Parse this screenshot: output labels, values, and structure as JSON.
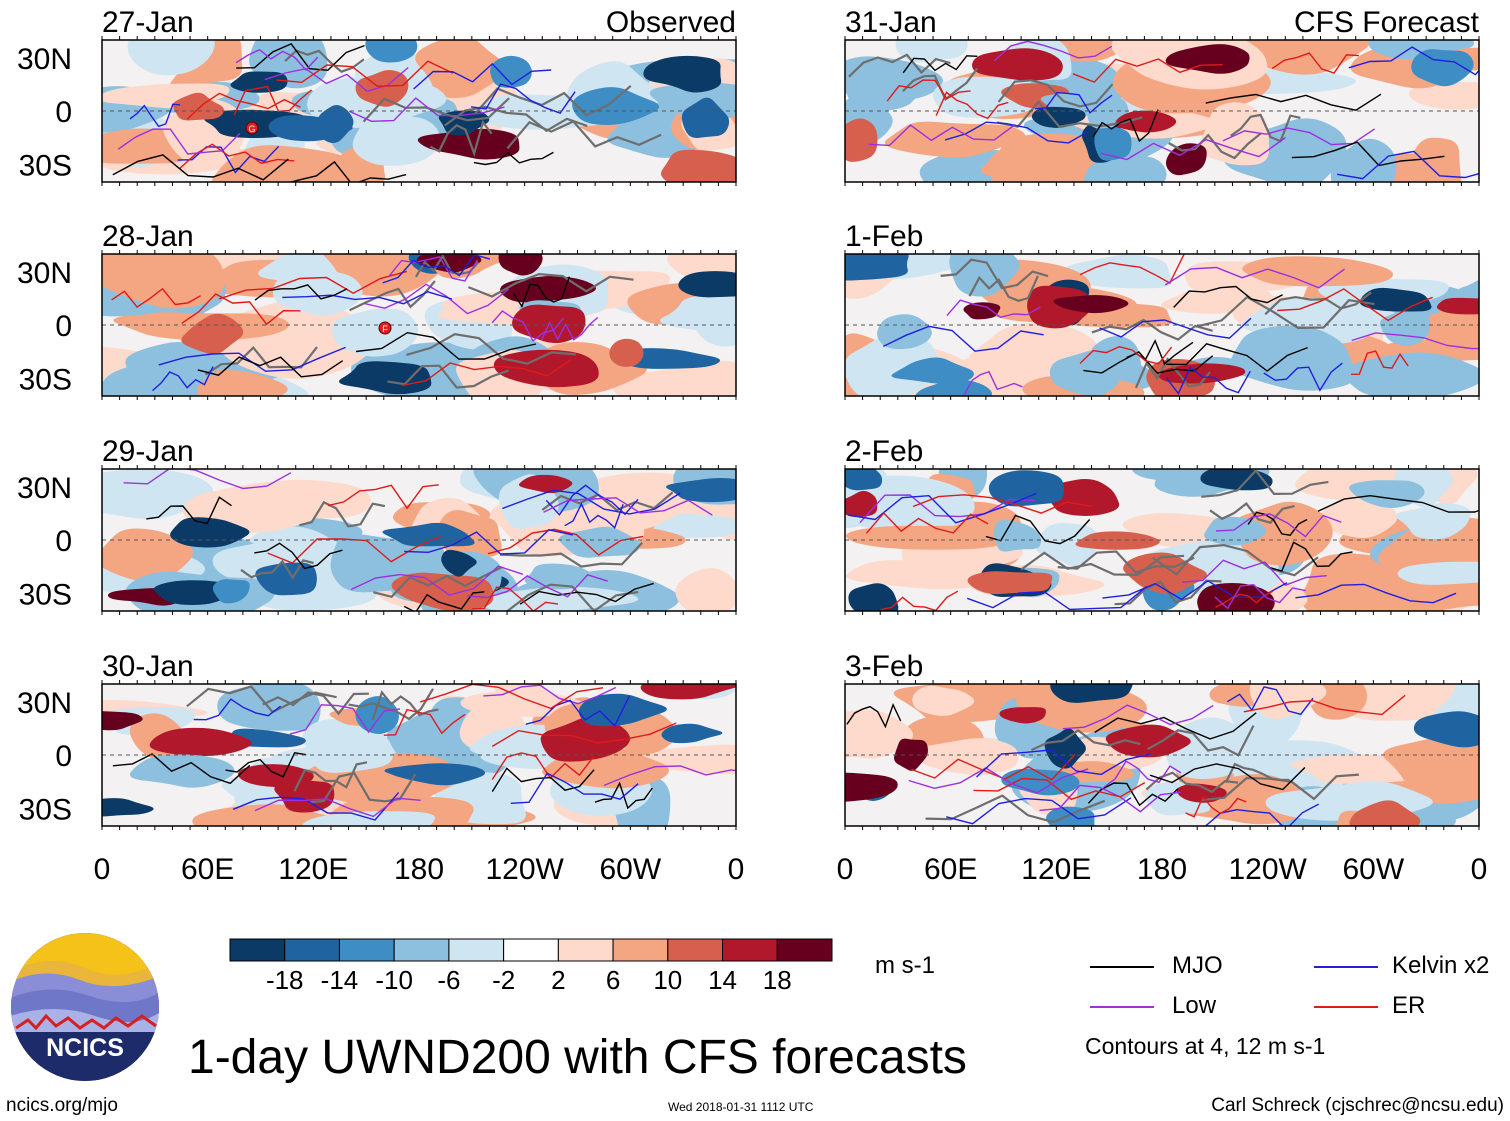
{
  "title": "1-day UWND200 with CFS forecasts",
  "website": "ncics.org/mjo",
  "timestamp": "Wed 2018-01-31 1112 UTC",
  "author": "Carl Schreck (cjschrec@ncsu.edu)",
  "logo_text": "NCICS",
  "columns": {
    "left_label": "Observed",
    "right_label": "CFS Forecast"
  },
  "colorbar": {
    "unit": "m s-1",
    "ticks": [
      "-18",
      "-14",
      "-10",
      "-6",
      "-2",
      "2",
      "6",
      "10",
      "14",
      "18"
    ],
    "colors": [
      "#0b3a66",
      "#1f63a1",
      "#3e8dc4",
      "#8dc0de",
      "#cfe5f1",
      "#ffffff",
      "#fddacb",
      "#f4a582",
      "#d6604d",
      "#b2182b",
      "#67001f"
    ]
  },
  "legend": {
    "items": [
      {
        "label": "MJO",
        "color": "#000000"
      },
      {
        "label": "Kelvin x2",
        "color": "#1f1fe0"
      },
      {
        "label": "Low",
        "color": "#9b30e0"
      },
      {
        "label": "ER",
        "color": "#e01a1a"
      }
    ],
    "contour_note": "Contours at 4, 12 m s-1"
  },
  "chart_data": {
    "type": "heatmap",
    "variable": "200-hPa zonal wind anomaly",
    "x_ticks": [
      "0",
      "60E",
      "120E",
      "180",
      "120W",
      "60W",
      "0"
    ],
    "y_ticks": [
      "30N",
      "0",
      "30S"
    ],
    "xlim": [
      0,
      360
    ],
    "ylim": [
      -40,
      40
    ],
    "panels": [
      {
        "date": "27-Jan",
        "source": "Observed",
        "storms": [
          "G"
        ]
      },
      {
        "date": "28-Jan",
        "source": "Observed",
        "storms": [
          "F"
        ]
      },
      {
        "date": "29-Jan",
        "source": "Observed",
        "storms": []
      },
      {
        "date": "30-Jan",
        "source": "Observed",
        "storms": []
      },
      {
        "date": "31-Jan",
        "source": "CFS Forecast",
        "storms": []
      },
      {
        "date": "1-Feb",
        "source": "CFS Forecast",
        "storms": []
      },
      {
        "date": "2-Feb",
        "source": "CFS Forecast",
        "storms": []
      },
      {
        "date": "3-Feb",
        "source": "CFS Forecast",
        "storms": []
      }
    ]
  }
}
